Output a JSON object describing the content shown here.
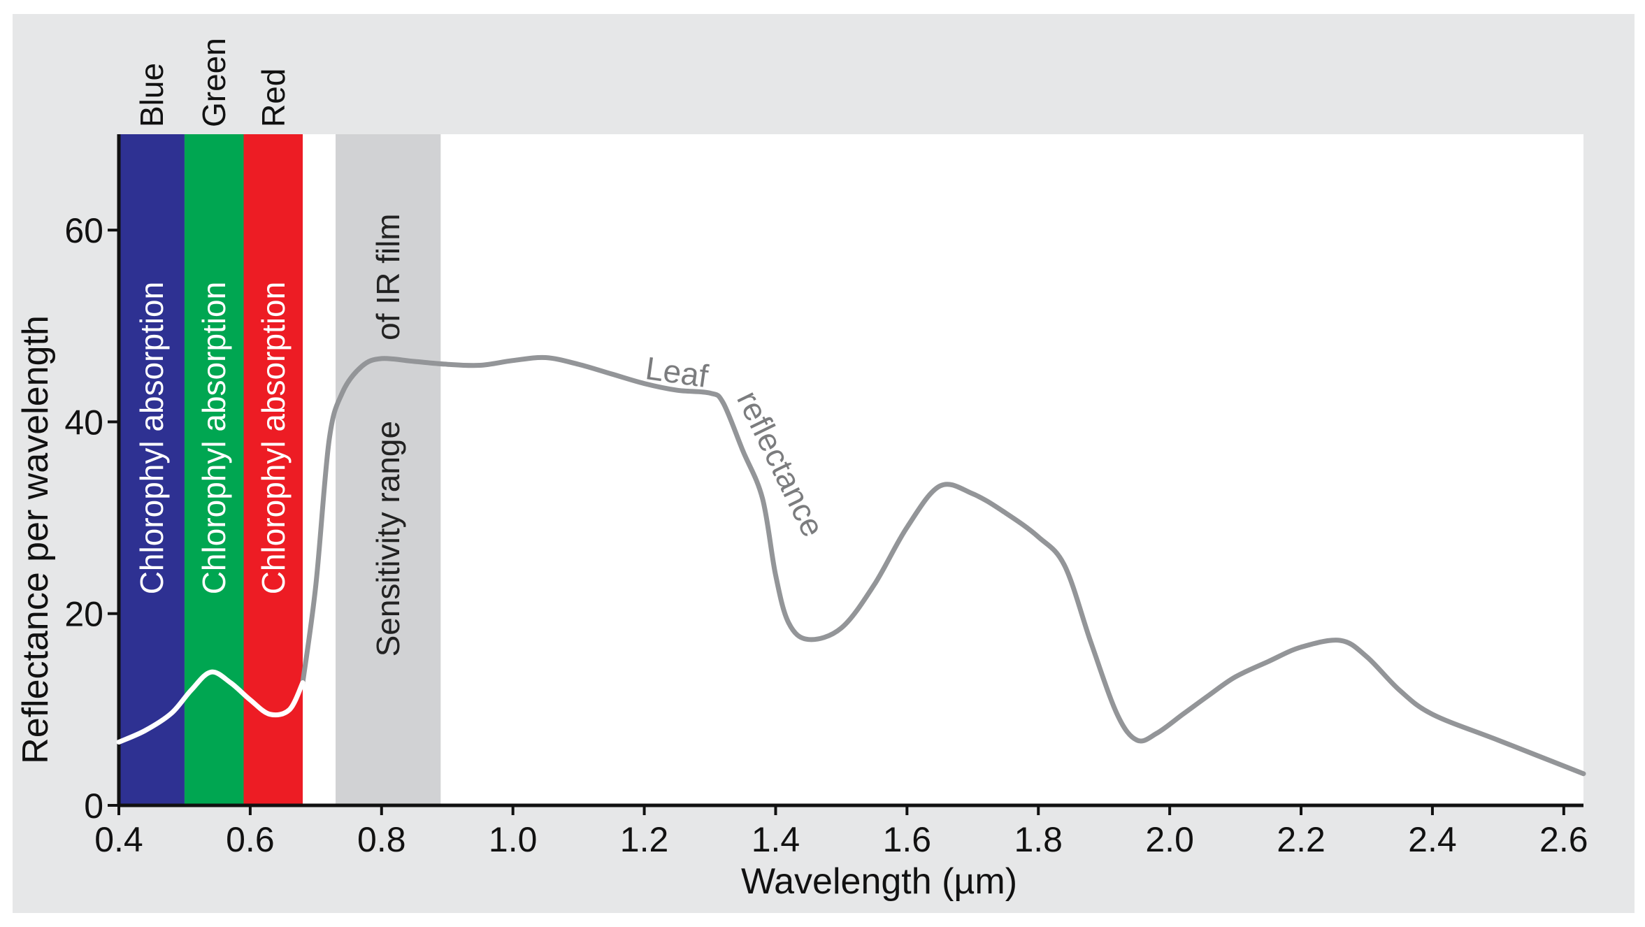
{
  "chart_data": {
    "type": "line",
    "title": "",
    "xlabel": "Wavelength (µm)",
    "ylabel": "Reflectance per wavelength",
    "xlim": [
      0.4,
      2.63
    ],
    "ylim": [
      0,
      70
    ],
    "x_ticks": [
      "0.4",
      "0.6",
      "0.8",
      "1.0",
      "1.2",
      "1.4",
      "1.6",
      "1.8",
      "2.0",
      "2.2",
      "2.4",
      "2.6"
    ],
    "y_ticks": [
      "0",
      "20",
      "40",
      "60"
    ],
    "grid": false,
    "bands": [
      {
        "name": "Blue",
        "from": 0.4,
        "to": 0.5,
        "color": "#2e3192",
        "label": "Chlorophyl absorption"
      },
      {
        "name": "Green",
        "from": 0.5,
        "to": 0.59,
        "color": "#00a651",
        "label": "Chlorophyl absorption"
      },
      {
        "name": "Red",
        "from": 0.59,
        "to": 0.68,
        "color": "#ed1c24",
        "label": "Chlorophyl absorption"
      }
    ],
    "ir_band": {
      "from": 0.73,
      "to": 0.89,
      "color": "#d1d2d4",
      "label_line1": "Sensitivity range",
      "label_line2": "of IR film"
    },
    "series": [
      {
        "name": "Leaf reflectance",
        "label_part1": "Leaf",
        "label_part2": "reflectance",
        "color": "#939598",
        "visible_color": "#ffffff",
        "x": [
          0.4,
          0.44,
          0.48,
          0.51,
          0.54,
          0.57,
          0.6,
          0.63,
          0.66,
          0.68,
          0.7,
          0.72,
          0.74,
          0.77,
          0.8,
          0.85,
          0.9,
          0.95,
          1.0,
          1.05,
          1.1,
          1.15,
          1.2,
          1.25,
          1.3,
          1.32,
          1.35,
          1.38,
          1.4,
          1.42,
          1.45,
          1.5,
          1.55,
          1.6,
          1.65,
          1.7,
          1.75,
          1.8,
          1.84,
          1.88,
          1.92,
          1.95,
          1.98,
          2.02,
          2.06,
          2.1,
          2.15,
          2.2,
          2.26,
          2.3,
          2.35,
          2.4,
          2.5,
          2.63
        ],
        "y": [
          6.6,
          7.8,
          9.6,
          12.0,
          13.9,
          12.8,
          11.0,
          9.5,
          10.0,
          12.8,
          23.0,
          38.0,
          43.0,
          45.8,
          46.6,
          46.3,
          46.0,
          45.9,
          46.4,
          46.7,
          46.0,
          45.0,
          44.0,
          43.3,
          43.0,
          42.0,
          37.0,
          32.0,
          24.0,
          19.0,
          17.3,
          18.5,
          23.0,
          29.0,
          33.3,
          32.5,
          30.5,
          28.0,
          25.0,
          17.0,
          9.5,
          6.8,
          7.5,
          9.5,
          11.5,
          13.4,
          15.0,
          16.5,
          17.2,
          15.5,
          12.0,
          9.5,
          6.8,
          3.3
        ]
      }
    ]
  }
}
